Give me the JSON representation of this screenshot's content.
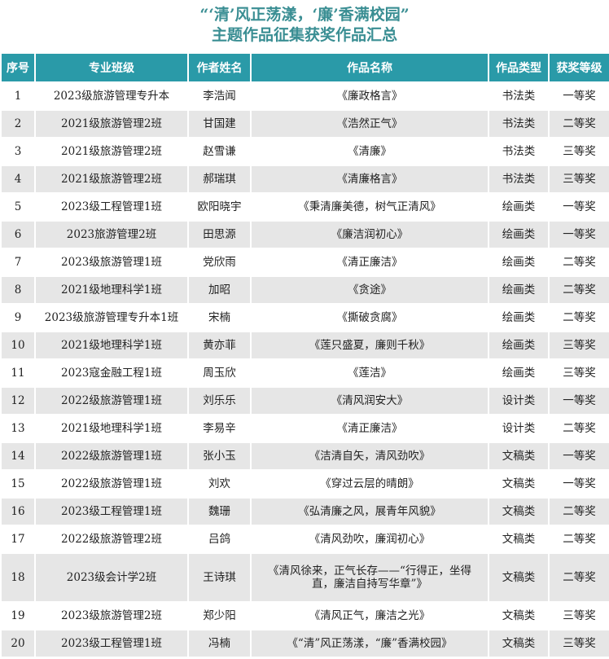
{
  "title": {
    "line1": "“‘清’风正荡漾，‘廉’香满校园”",
    "line2": "主题作品征集获奖作品汇总"
  },
  "headers": [
    "序号",
    "专业班级",
    "作者姓名",
    "作品名称",
    "作品类型",
    "获奖等级"
  ],
  "rows": [
    [
      "1",
      "2023级旅游管理专升本",
      "李浩闻",
      "《廉政格言》",
      "书法类",
      "一等奖"
    ],
    [
      "2",
      "2021级旅游管理2班",
      "甘国建",
      "《浩然正气》",
      "书法类",
      "二等奖"
    ],
    [
      "3",
      "2021级旅游管理2班",
      "赵雪谦",
      "《清廉》",
      "书法类",
      "三等奖"
    ],
    [
      "4",
      "2021级旅游管理2班",
      "郝瑞琪",
      "《清廉格言》",
      "书法类",
      "三等奖"
    ],
    [
      "5",
      "2023级工程管理1班",
      "欧阳晓宇",
      "《秉清廉美德，树气正清风》",
      "绘画类",
      "一等奖"
    ],
    [
      "6",
      "2023旅游管理2班",
      "田思源",
      "《廉洁润初心》",
      "绘画类",
      "一等奖"
    ],
    [
      "7",
      "2023级旅游管理1班",
      "党欣雨",
      "《清正廉洁》",
      "绘画类",
      "二等奖"
    ],
    [
      "8",
      "2021级地理科学1班",
      "加昭",
      "《贪途》",
      "绘画类",
      "二等奖"
    ],
    [
      "9",
      "2023级旅游管理专升本1班",
      "宋楠",
      "《撕破贪腐》",
      "绘画类",
      "二等奖"
    ],
    [
      "10",
      "2021级地理科学1班",
      "黄亦菲",
      "《莲只盛夏，廉则千秋》",
      "绘画类",
      "三等奖"
    ],
    [
      "11",
      "2023寇金融工程1班",
      "周玉欣",
      "《莲洁》",
      "绘画类",
      "三等奖"
    ],
    [
      "12",
      "2022级旅游管理1班",
      "刘乐乐",
      "《清风润安大》",
      "设计类",
      "一等奖"
    ],
    [
      "13",
      "2021级地理科学1班",
      "李易辛",
      "《清正廉洁》",
      "设计类",
      "二等奖"
    ],
    [
      "14",
      "2022级旅游管理1班",
      "张小玉",
      "《洁清自矢，清风劲吹》",
      "文稿类",
      "一等奖"
    ],
    [
      "15",
      "2022级旅游管理1班",
      "刘欢",
      "《穿过云层的晴朗》",
      "文稿类",
      "一等奖"
    ],
    [
      "16",
      "2023级工程管理1班",
      "魏珊",
      "《弘清廉之风，展青年风貌》",
      "文稿类",
      "二等奖"
    ],
    [
      "17",
      "2022级旅游管理2班",
      "吕鸽",
      "《清风劲吹，廉润初心》",
      "文稿类",
      "二等奖"
    ],
    [
      "18",
      "2023级会计学2班",
      "王诗琪",
      "《清风徐来，正气长存——“行得正，坐得直，廉洁自持写华章”》",
      "文稿类",
      "二等奖"
    ],
    [
      "19",
      "2023级旅游管理2班",
      "郑少阳",
      "《清风正气，廉洁之光》",
      "文稿类",
      "三等奖"
    ],
    [
      "20",
      "2023级工程管理1班",
      "冯楠",
      "《“清”风正荡漾，“廉”香满校园》",
      "文稿类",
      "三等奖"
    ]
  ]
}
